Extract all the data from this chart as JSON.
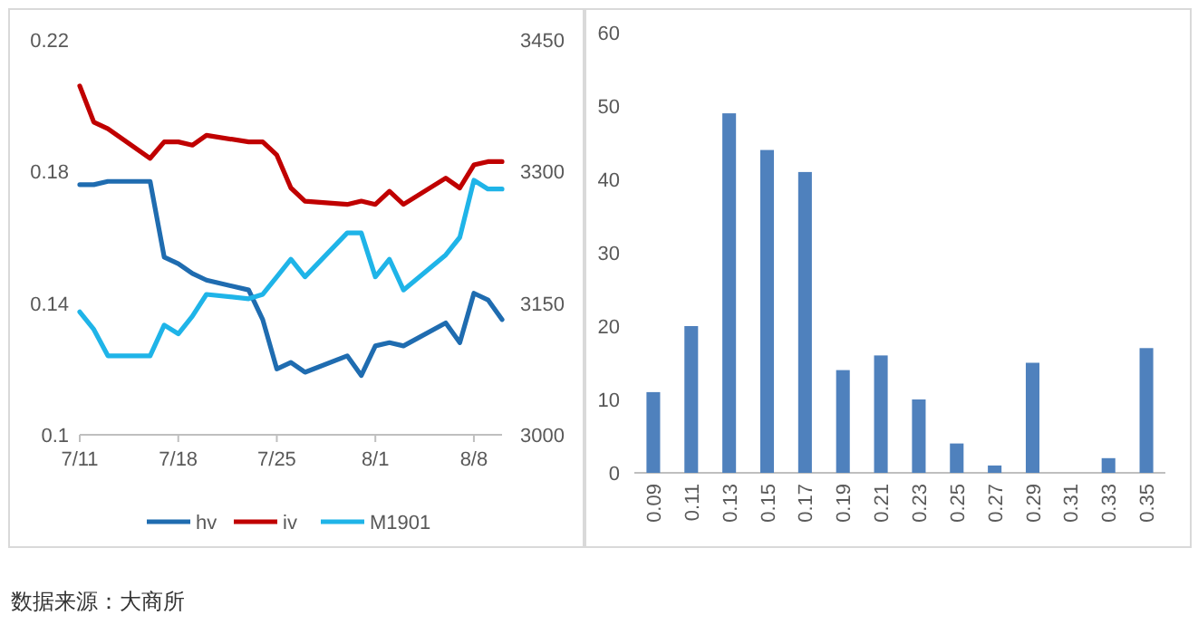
{
  "chart_data": [
    {
      "type": "line",
      "x": [
        "--07-11",
        "--07-12",
        "--07-13",
        "--07-16",
        "--07-17",
        "--07-18",
        "--07-19",
        "--07-20",
        "--07-23",
        "--07-24",
        "--07-25",
        "--07-26",
        "--07-27",
        "--07-30",
        "--07-31",
        "--08-01",
        "--08-02",
        "--08-03",
        "--08-06",
        "--08-07",
        "--08-08",
        "--08-09",
        "--08-10"
      ],
      "xlim": [
        "--07-11",
        "--08-10"
      ],
      "xticks": [
        {
          "value": "--07-11",
          "label": "7/11"
        },
        {
          "value": "--07-18",
          "label": "7/18"
        },
        {
          "value": "--07-25",
          "label": "7/25"
        },
        {
          "value": "--08-01",
          "label": "8/1"
        },
        {
          "value": "--08-08",
          "label": "8/8"
        }
      ],
      "ylim": [
        0.1,
        0.22
      ],
      "yticks": [
        0.1,
        0.14,
        0.18,
        0.22
      ],
      "y2lim": [
        3000,
        3450
      ],
      "y2ticks": [
        3000,
        3150,
        3300,
        3450
      ],
      "legend": "bottom",
      "series": [
        {
          "name": "hv",
          "color": "#1f6cb0",
          "values": [
            0.176,
            0.176,
            0.177,
            0.177,
            0.154,
            0.152,
            0.149,
            0.147,
            0.144,
            0.135,
            0.12,
            0.122,
            0.119,
            0.124,
            0.118,
            0.127,
            0.128,
            0.127,
            0.134,
            0.128,
            0.143,
            0.141,
            0.135
          ]
        },
        {
          "name": "iv",
          "color": "#c00000",
          "values": [
            0.206,
            0.195,
            0.193,
            0.184,
            0.189,
            0.189,
            0.188,
            0.191,
            0.189,
            0.189,
            0.185,
            0.175,
            0.171,
            0.17,
            0.171,
            0.17,
            0.174,
            0.17,
            0.178,
            0.175,
            0.182,
            0.183,
            0.183
          ]
        },
        {
          "name": "M1901",
          "color": "#1fb4e8",
          "axis": "y2",
          "values": [
            3140,
            3120,
            3090,
            3090,
            3125,
            3115,
            3135,
            3160,
            3155,
            3160,
            3180,
            3200,
            3180,
            3230,
            3230,
            3180,
            3200,
            3165,
            3205,
            3225,
            3290,
            3280,
            3280
          ]
        }
      ],
      "annotations": [
        "数据来源：大商所"
      ]
    },
    {
      "type": "bar",
      "categories": [
        "0.09",
        "0.11",
        "0.13",
        "0.15",
        "0.17",
        "0.19",
        "0.21",
        "0.23",
        "0.25",
        "0.27",
        "0.29",
        "0.31",
        "0.33",
        "0.35"
      ],
      "values": [
        11,
        20,
        49,
        44,
        41,
        14,
        16,
        10,
        4,
        1,
        15,
        0,
        2,
        17
      ],
      "color": "#4f81bd",
      "ylim": [
        0,
        60
      ],
      "yticks": [
        0,
        10,
        20,
        30,
        40,
        50,
        60
      ]
    }
  ]
}
